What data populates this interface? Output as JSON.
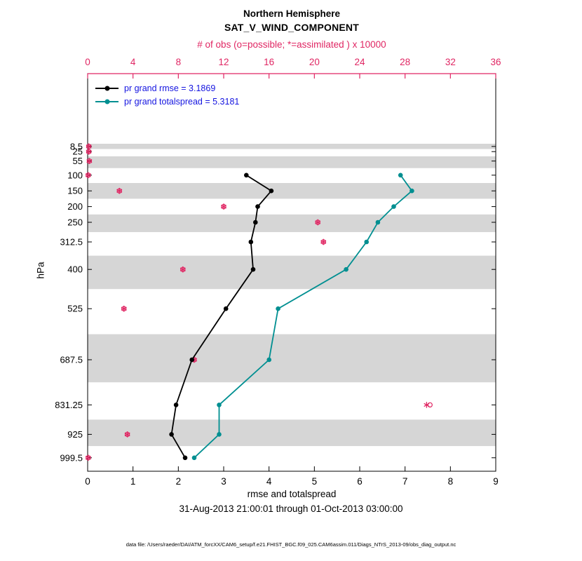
{
  "titles": {
    "line1": "Northern Hemisphere",
    "line2": "SAT_V_WIND_COMPONENT"
  },
  "legend": {
    "entries": [
      {
        "label": "pr grand rmse = 3.1869"
      },
      {
        "label": "pr grand totalspread = 5.3181"
      }
    ]
  },
  "labels": {
    "top_axis": "# of obs (o=possible; *=assimilated ) x 10000",
    "bottom_axis": "rmse and totalspread",
    "left_axis": "hPa"
  },
  "footer": {
    "date_range": "31-Aug-2013 21:00:01 through 01-Oct-2013 03:00:00",
    "data_file": "data file: /Users/raeder/DAI/ATM_forcXX/CAM6_setup/f.e21.FHIST_BGC.f09_025.CAM6assim.011/Diags_NTrS_2013-09/obs_diag_output.nc"
  },
  "colors": {
    "rmse": "#000000",
    "spread": "#008f91",
    "obs": "#e02663",
    "legend_text": "#1414e0",
    "band": "#d6d6d6",
    "axis": "#000000"
  },
  "chart_data": {
    "type": "line",
    "title": "Northern Hemisphere SAT_V_WIND_COMPONENT",
    "x_bottom": {
      "label": "rmse and totalspread",
      "range": [
        0,
        9
      ],
      "ticks": [
        0,
        1,
        2,
        3,
        4,
        5,
        6,
        7,
        8,
        9
      ]
    },
    "x_top": {
      "label": "# of obs (o=possible; *=assimilated ) x 10000",
      "range": [
        0,
        36
      ],
      "ticks": [
        0,
        4,
        8,
        12,
        16,
        20,
        24,
        28,
        32,
        36
      ]
    },
    "y": {
      "label": "hPa",
      "direction": "pressure-increasing-downward",
      "levels": [
        8.5,
        25,
        55,
        100,
        150,
        200,
        250,
        312.5,
        400,
        525,
        687.5,
        831.25,
        925,
        999.5
      ]
    },
    "series": [
      {
        "name": "pr grand rmse",
        "legend": "pr grand rmse = 3.1869",
        "color_key": "rmse",
        "x_axis": "bottom",
        "values": [
          null,
          null,
          null,
          3.5,
          4.05,
          3.75,
          3.7,
          3.6,
          3.65,
          3.05,
          2.3,
          1.95,
          1.85,
          2.15
        ]
      },
      {
        "name": "pr grand totalspread",
        "legend": "pr grand totalspread = 5.3181",
        "color_key": "spread",
        "x_axis": "bottom",
        "values": [
          null,
          null,
          null,
          6.9,
          7.15,
          6.75,
          6.4,
          6.15,
          5.7,
          4.2,
          4.0,
          2.9,
          2.9,
          2.35
        ]
      }
    ],
    "obs_counts_x10000": {
      "axis": "top",
      "possible": [
        0.1,
        0.1,
        0.15,
        0.05,
        2.8,
        12.0,
        20.3,
        20.8,
        8.4,
        3.2,
        9.4,
        30.2,
        3.5,
        0.05
      ],
      "assimilated": [
        0.1,
        0.1,
        0.15,
        0.05,
        2.8,
        12.0,
        20.3,
        20.8,
        8.4,
        3.2,
        9.4,
        29.9,
        3.5,
        0.05
      ]
    },
    "shaded_bands_hpa": [
      [
        0,
        16.75
      ],
      [
        40,
        77.5
      ],
      [
        125,
        175
      ],
      [
        225,
        281.25
      ],
      [
        356.25,
        462.5
      ],
      [
        606.25,
        759.375
      ],
      [
        878.125,
        962.25
      ]
    ],
    "grid": false,
    "legend_position": "top-left-inside"
  }
}
